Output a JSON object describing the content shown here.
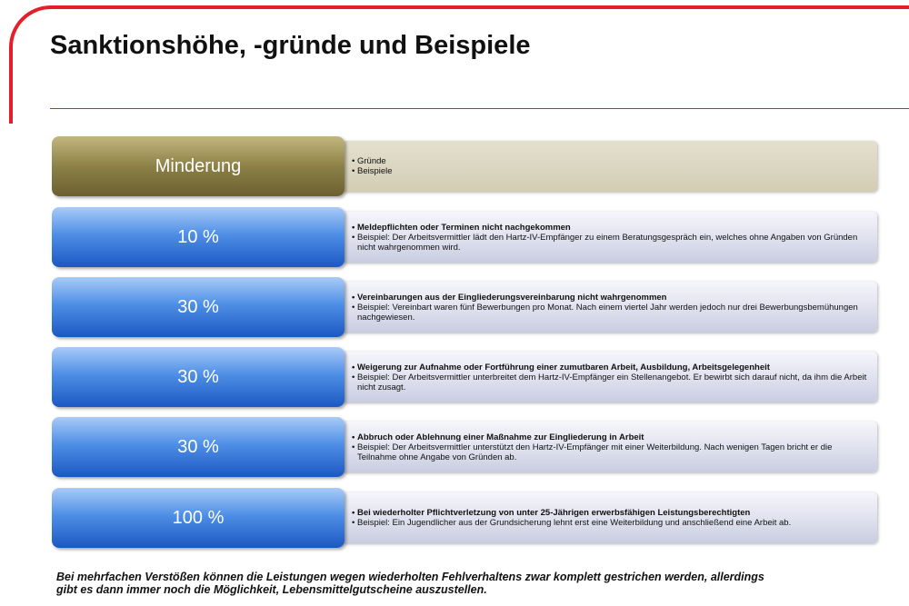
{
  "title": "Sanktionshöhe, -gründe und Beispiele",
  "header": {
    "label": "Minderung",
    "items": [
      "Gründe",
      "Beispiele"
    ]
  },
  "rows": [
    {
      "sanction": "10 %",
      "reason": "Meldepflichten oder Terminen nicht nachgekommen",
      "example": "Beispiel: Der Arbeitsvermittler lädt den Hartz-IV-Empfänger zu einem Beratungsgespräch ein, welches ohne Angaben von Gründen nicht wahrgenommen wird."
    },
    {
      "sanction": "30 %",
      "reason": "Vereinbarungen aus der Eingliederungsvereinbarung nicht wahrgenommen",
      "example": "Beispiel: Vereinbart waren fünf Bewerbungen pro Monat. Nach einem viertel Jahr werden jedoch nur drei Bewerbungsbemühungen nachgewiesen."
    },
    {
      "sanction": "30 %",
      "reason": "Weigerung zur Aufnahme oder Fortführung einer zumutbaren Arbeit, Ausbildung, Arbeitsgelegenheit",
      "example": "Beispiel: Der Arbeitsvermittler unterbreitet dem Hartz-IV-Empfänger ein Stellenangebot. Er bewirbt sich darauf nicht, da ihm die Arbeit nicht zusagt."
    },
    {
      "sanction": "30 %",
      "reason": "Abbruch oder Ablehnung einer Maßnahme zur Eingliederung in Arbeit",
      "example": "Beispiel: Der Arbeitsvermittler unterstützt den Hartz-IV-Empfänger mit einer Weiterbildung. Nach wenigen Tagen bricht er die Teilnahme ohne Angabe von Gründen ab."
    },
    {
      "sanction": "100 %",
      "reason": "Bei wiederholter Pflichtverletzung von unter 25-Jährigen erwerbsfähigen Leistungsberechtigten",
      "example": "Beispiel: Ein Jugendlicher aus der Grundsicherung lehnt erst eine Weiterbildung und anschließend eine Arbeit ab."
    }
  ],
  "note": [
    "Bei mehrfachen Verstößen können die Leistungen wegen wiederholten Fehlverhaltens zwar komplett gestrichen werden, allerdings",
    "gibt es dann immer noch die Möglichkeit, Lebensmittelgutscheine auszustellen."
  ]
}
